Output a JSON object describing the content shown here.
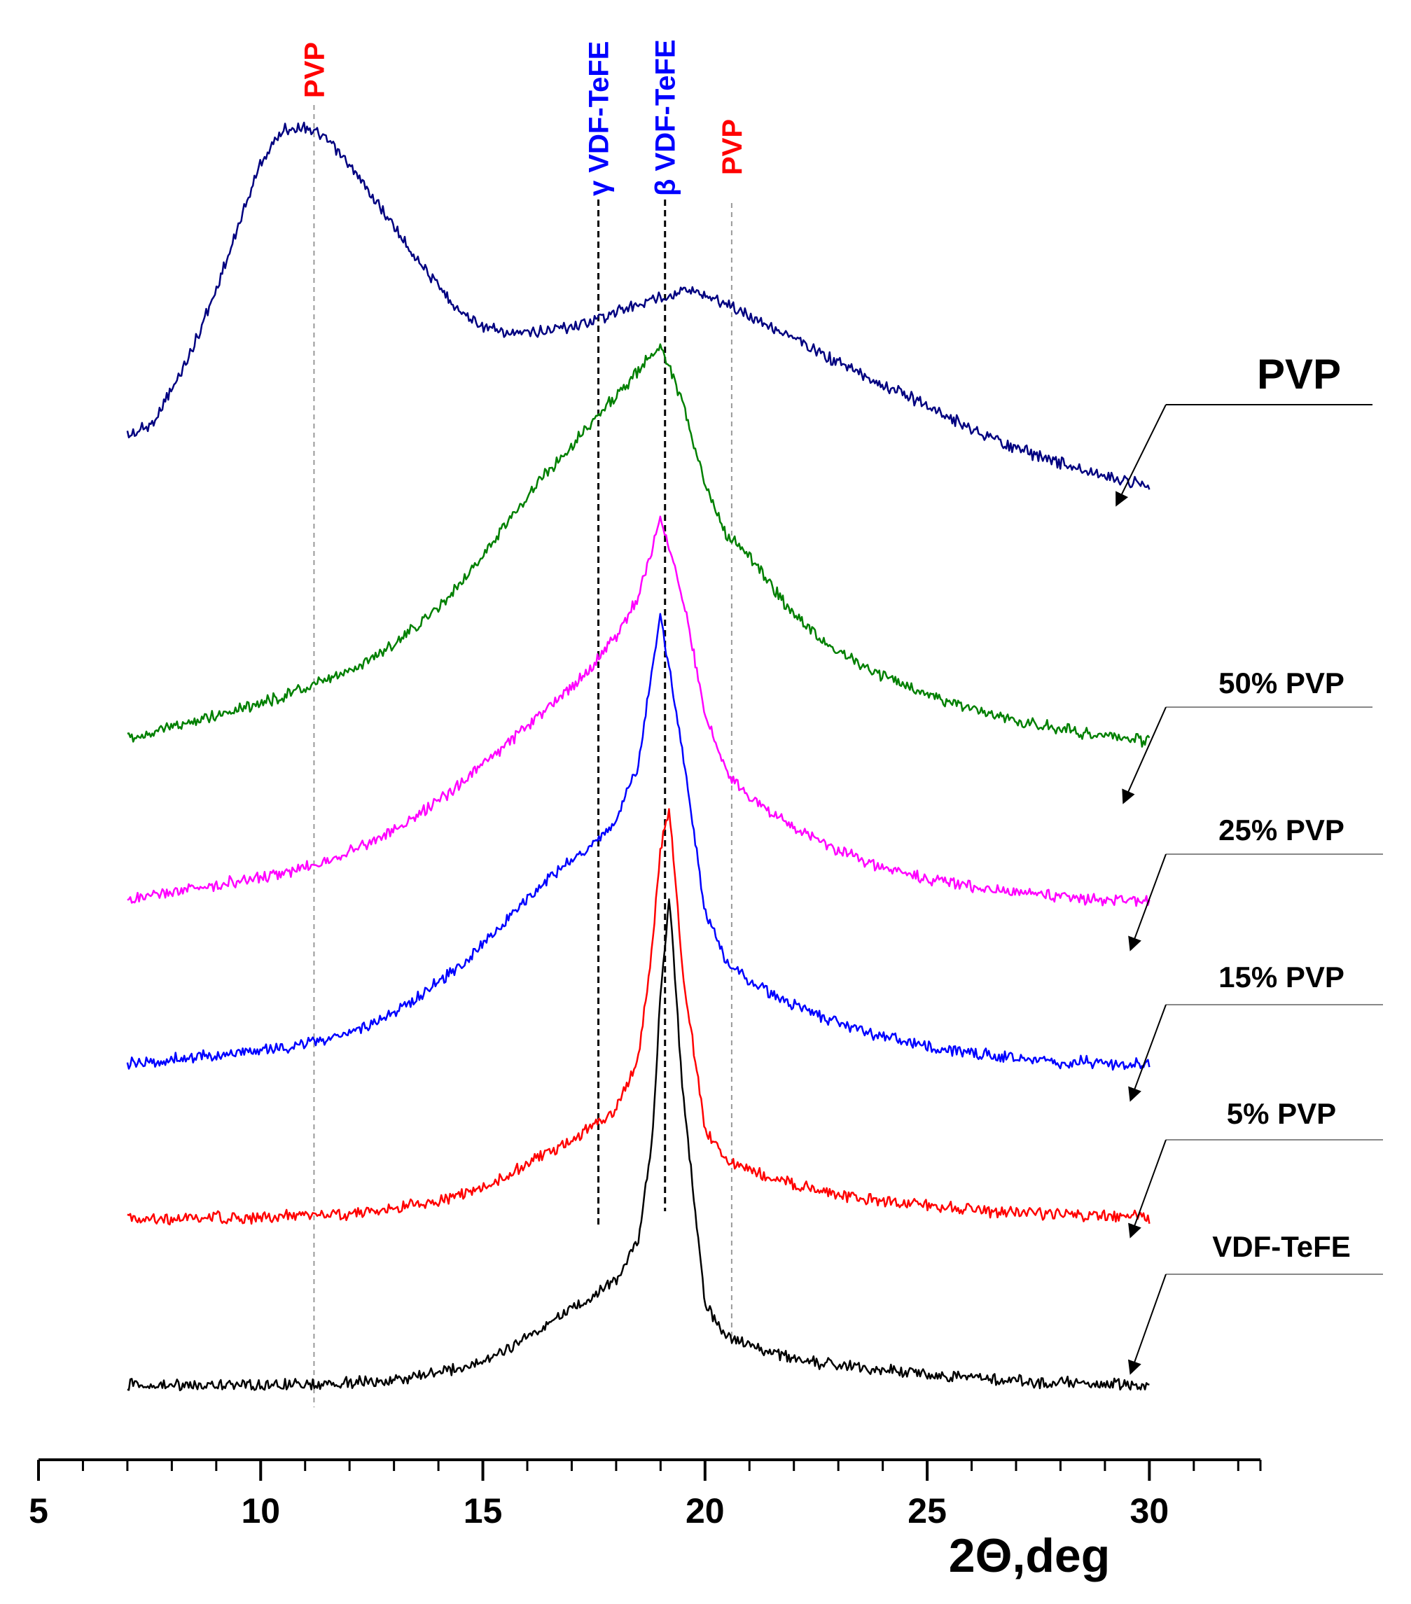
{
  "chart_data": {
    "type": "line",
    "title": "",
    "xlabel": "2Θ,deg",
    "ylabel": "",
    "xlim": [
      5,
      32.5
    ],
    "x_ticks": [
      5,
      10,
      15,
      20,
      25,
      30
    ],
    "x_tick_labels": [
      "5",
      "10",
      "15",
      "20",
      "25",
      "30"
    ],
    "grid": false,
    "legend_placement": "right (arrow callouts)",
    "series": [
      {
        "name": "PVP",
        "color": "#000080",
        "x": [
          7.0,
          7.5,
          8.0,
          8.5,
          9.0,
          9.5,
          10.0,
          10.5,
          11.0,
          11.5,
          12.0,
          12.5,
          13.0,
          13.5,
          14.0,
          14.5,
          15.0,
          15.5,
          16.0,
          16.5,
          17.0,
          17.5,
          18.0,
          18.5,
          19.0,
          19.5,
          20.0,
          20.5,
          21.0,
          21.5,
          22.0,
          22.5,
          23.0,
          23.5,
          24.0,
          24.5,
          25.0,
          25.5,
          26.0,
          26.5,
          27.0,
          27.5,
          28.0,
          28.5,
          29.0,
          29.5,
          30.0
        ],
        "y": [
          0.3,
          0.35,
          0.55,
          0.8,
          1.1,
          1.45,
          1.8,
          1.98,
          2.0,
          1.92,
          1.78,
          1.62,
          1.45,
          1.28,
          1.12,
          0.98,
          0.9,
          0.86,
          0.86,
          0.88,
          0.9,
          0.93,
          0.98,
          1.02,
          1.06,
          1.1,
          1.08,
          1.02,
          0.96,
          0.9,
          0.83,
          0.76,
          0.7,
          0.64,
          0.58,
          0.52,
          0.46,
          0.4,
          0.34,
          0.28,
          0.23,
          0.19,
          0.15,
          0.11,
          0.08,
          0.05,
          0.03
        ]
      },
      {
        "name": "50% PVP",
        "color": "#008000",
        "x": [
          7.0,
          7.5,
          8.0,
          8.5,
          9.0,
          9.5,
          10.0,
          10.5,
          11.0,
          11.5,
          12.0,
          12.5,
          13.0,
          13.5,
          14.0,
          14.5,
          15.0,
          15.5,
          16.0,
          16.5,
          17.0,
          17.5,
          18.0,
          18.5,
          19.0,
          19.5,
          20.0,
          20.5,
          21.0,
          21.5,
          22.0,
          22.5,
          23.0,
          23.5,
          24.0,
          24.5,
          25.0,
          25.5,
          26.0,
          26.5,
          27.0,
          27.5,
          28.0,
          28.5,
          29.0,
          29.5,
          30.0
        ],
        "y": [
          0.05,
          0.08,
          0.11,
          0.14,
          0.17,
          0.2,
          0.23,
          0.26,
          0.3,
          0.34,
          0.39,
          0.45,
          0.52,
          0.6,
          0.7,
          0.82,
          0.95,
          1.1,
          1.25,
          1.38,
          1.5,
          1.62,
          1.74,
          1.86,
          2.0,
          1.7,
          1.3,
          1.05,
          0.95,
          0.8,
          0.66,
          0.56,
          0.48,
          0.42,
          0.36,
          0.31,
          0.27,
          0.23,
          0.2,
          0.17,
          0.14,
          0.12,
          0.1,
          0.08,
          0.07,
          0.05,
          0.04
        ]
      },
      {
        "name": "25% PVP",
        "color": "#ff00ff",
        "x": [
          7.0,
          7.5,
          8.0,
          8.5,
          9.0,
          9.5,
          10.0,
          10.5,
          11.0,
          11.5,
          12.0,
          12.5,
          13.0,
          13.5,
          14.0,
          14.5,
          15.0,
          15.5,
          16.0,
          16.5,
          17.0,
          17.5,
          18.0,
          18.5,
          19.0,
          19.5,
          20.0,
          20.5,
          21.0,
          21.5,
          22.0,
          22.5,
          23.0,
          23.5,
          24.0,
          24.5,
          25.0,
          25.5,
          26.0,
          26.5,
          27.0,
          27.5,
          28.0,
          28.5,
          29.0,
          29.5,
          30.0
        ],
        "y": [
          0.05,
          0.07,
          0.09,
          0.11,
          0.13,
          0.15,
          0.17,
          0.19,
          0.22,
          0.26,
          0.3,
          0.35,
          0.41,
          0.48,
          0.56,
          0.65,
          0.74,
          0.84,
          0.94,
          1.04,
          1.14,
          1.26,
          1.4,
          1.6,
          2.0,
          1.6,
          1.0,
          0.7,
          0.58,
          0.5,
          0.42,
          0.36,
          0.3,
          0.26,
          0.22,
          0.19,
          0.16,
          0.14,
          0.12,
          0.1,
          0.09,
          0.08,
          0.07,
          0.06,
          0.05,
          0.05,
          0.04
        ]
      },
      {
        "name": "15% PVP",
        "color": "#0000ff",
        "x": [
          7.0,
          7.5,
          8.0,
          8.5,
          9.0,
          9.5,
          10.0,
          10.5,
          11.0,
          11.5,
          12.0,
          12.5,
          13.0,
          13.5,
          14.0,
          14.5,
          15.0,
          15.5,
          16.0,
          16.5,
          17.0,
          17.5,
          18.0,
          18.5,
          19.0,
          19.5,
          20.0,
          20.5,
          21.0,
          21.5,
          22.0,
          22.5,
          23.0,
          23.5,
          24.0,
          24.5,
          25.0,
          25.5,
          26.0,
          26.5,
          27.0,
          27.5,
          28.0,
          28.5,
          29.0,
          29.5,
          30.0
        ],
        "y": [
          0.03,
          0.04,
          0.05,
          0.06,
          0.07,
          0.08,
          0.09,
          0.1,
          0.12,
          0.14,
          0.17,
          0.21,
          0.26,
          0.32,
          0.39,
          0.47,
          0.56,
          0.66,
          0.76,
          0.85,
          0.93,
          1.0,
          1.1,
          1.35,
          2.0,
          1.4,
          0.7,
          0.48,
          0.4,
          0.34,
          0.29,
          0.25,
          0.21,
          0.18,
          0.15,
          0.13,
          0.11,
          0.09,
          0.08,
          0.07,
          0.06,
          0.05,
          0.04,
          0.04,
          0.03,
          0.03,
          0.03
        ]
      },
      {
        "name": "5% PVP",
        "color": "#ff0000",
        "x": [
          7.0,
          7.5,
          8.0,
          8.5,
          9.0,
          9.5,
          10.0,
          10.5,
          11.0,
          11.5,
          12.0,
          12.5,
          13.0,
          13.5,
          14.0,
          14.5,
          15.0,
          15.5,
          16.0,
          16.5,
          17.0,
          17.5,
          18.0,
          18.5,
          18.8,
          19.0,
          19.2,
          19.5,
          20.0,
          20.5,
          21.0,
          21.5,
          22.0,
          22.5,
          23.0,
          23.5,
          24.0,
          24.5,
          25.0,
          25.5,
          26.0,
          26.5,
          27.0,
          27.5,
          28.0,
          28.5,
          29.0,
          29.5,
          30.0
        ],
        "y": [
          0.02,
          0.02,
          0.02,
          0.02,
          0.02,
          0.02,
          0.02,
          0.03,
          0.03,
          0.03,
          0.04,
          0.05,
          0.06,
          0.08,
          0.1,
          0.13,
          0.17,
          0.22,
          0.28,
          0.34,
          0.4,
          0.46,
          0.54,
          0.8,
          1.3,
          1.8,
          2.0,
          1.2,
          0.45,
          0.3,
          0.25,
          0.21,
          0.18,
          0.15,
          0.13,
          0.11,
          0.1,
          0.09,
          0.08,
          0.07,
          0.06,
          0.05,
          0.05,
          0.04,
          0.04,
          0.03,
          0.03,
          0.03,
          0.02
        ]
      },
      {
        "name": "VDF-TeFE",
        "color": "#000000",
        "x": [
          7.0,
          7.5,
          8.0,
          8.5,
          9.0,
          9.5,
          10.0,
          10.5,
          11.0,
          11.5,
          12.0,
          12.5,
          13.0,
          13.5,
          14.0,
          14.5,
          15.0,
          15.5,
          16.0,
          16.5,
          17.0,
          17.5,
          18.0,
          18.5,
          18.8,
          19.0,
          19.2,
          19.5,
          20.0,
          20.5,
          21.0,
          21.5,
          22.0,
          22.5,
          23.0,
          23.5,
          24.0,
          24.5,
          25.0,
          25.5,
          26.0,
          26.5,
          27.0,
          27.5,
          28.0,
          28.5,
          29.0,
          29.5,
          30.0
        ],
        "y": [
          0.02,
          0.02,
          0.02,
          0.02,
          0.02,
          0.02,
          0.02,
          0.02,
          0.02,
          0.02,
          0.03,
          0.03,
          0.04,
          0.05,
          0.07,
          0.09,
          0.12,
          0.16,
          0.21,
          0.27,
          0.33,
          0.38,
          0.44,
          0.6,
          1.0,
          1.6,
          2.0,
          1.2,
          0.35,
          0.22,
          0.18,
          0.15,
          0.13,
          0.11,
          0.1,
          0.09,
          0.08,
          0.07,
          0.06,
          0.05,
          0.05,
          0.04,
          0.04,
          0.03,
          0.03,
          0.03,
          0.02,
          0.02,
          0.02
        ]
      }
    ],
    "reference_lines": [
      {
        "x": 11.2,
        "label": "PVP",
        "label_color": "#ff0000",
        "line_color": "#999999",
        "style": "dashed"
      },
      {
        "x": 17.6,
        "label": "γ VDF-TeFE",
        "label_color": "#0000ff",
        "line_color": "#000000",
        "style": "dashed"
      },
      {
        "x": 19.1,
        "label": "β VDF-TeFE",
        "label_color": "#0000ff",
        "line_color": "#000000",
        "style": "dashed"
      },
      {
        "x": 20.6,
        "label": "PVP",
        "label_color": "#ff0000",
        "line_color": "#999999",
        "style": "dashed"
      }
    ]
  }
}
